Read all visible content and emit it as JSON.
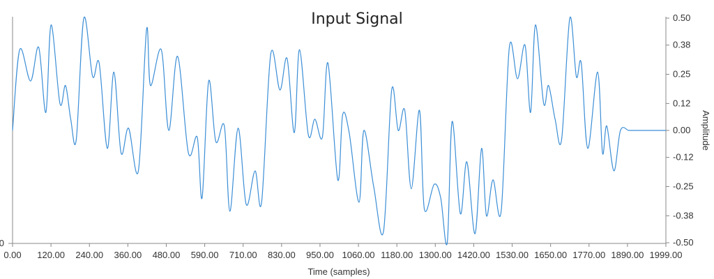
{
  "chart_data": {
    "type": "line",
    "title": "Input Signal",
    "xlabel": "Time (samples)",
    "ylabel": "Amplitude",
    "xlim": [
      0,
      1999
    ],
    "ylim": [
      -0.5,
      0.5
    ],
    "x_ticks": [
      "0.00",
      "120.00",
      "240.00",
      "360.00",
      "480.00",
      "590.00",
      "710.00",
      "830.00",
      "950.00",
      "1060.00",
      "1180.00",
      "1300.00",
      "1420.00",
      "1530.00",
      "1650.00",
      "1770.00",
      "1890.00",
      "1999.00"
    ],
    "y_ticks": [
      "0.50",
      "0.38",
      "0.25",
      "0.12",
      "0.00",
      "-0.12",
      "-0.25",
      "-0.38",
      "-0.50"
    ],
    "left_axis_tick": "0",
    "y_axis_side": "right",
    "grid": false,
    "legend": "none",
    "series": [
      {
        "color": "#3b8ed6",
        "x": [
          0,
          22,
          55,
          80,
          102,
          118,
          145,
          162,
          178,
          195,
          218,
          245,
          265,
          290,
          310,
          332,
          355,
          385,
          410,
          422,
          455,
          478,
          505,
          538,
          565,
          580,
          600,
          622,
          648,
          665,
          690,
          715,
          742,
          762,
          790,
          818,
          840,
          862,
          878,
          905,
          925,
          948,
          965,
          995,
          1010,
          1030,
          1060,
          1075,
          1105,
          1135,
          1160,
          1180,
          1200,
          1220,
          1245,
          1260,
          1290,
          1310,
          1330,
          1345,
          1370,
          1390,
          1415,
          1435,
          1450,
          1470,
          1495,
          1520,
          1545,
          1568,
          1585,
          1600,
          1625,
          1640,
          1660,
          1680,
          1705,
          1725,
          1740,
          1760,
          1790,
          1805,
          1818,
          1840,
          1860,
          1885,
          1900,
          1920,
          1950,
          1970,
          1999
        ],
        "y": [
          0.0,
          0.36,
          0.22,
          0.37,
          0.08,
          0.47,
          0.12,
          0.2,
          0.05,
          -0.04,
          0.5,
          0.24,
          0.3,
          -0.08,
          0.26,
          -0.1,
          0.01,
          -0.18,
          0.45,
          0.2,
          0.36,
          0.0,
          0.33,
          -0.1,
          -0.03,
          -0.3,
          0.22,
          -0.05,
          0.02,
          -0.36,
          0.01,
          -0.33,
          -0.18,
          -0.32,
          0.34,
          0.18,
          0.32,
          -0.01,
          0.36,
          -0.02,
          0.05,
          -0.03,
          0.3,
          -0.22,
          0.07,
          -0.01,
          -0.32,
          0.0,
          -0.25,
          -0.45,
          0.18,
          0.0,
          0.09,
          -0.26,
          0.09,
          -0.35,
          -0.24,
          -0.3,
          -0.5,
          0.04,
          -0.37,
          -0.14,
          -0.46,
          -0.08,
          -0.38,
          -0.22,
          -0.36,
          0.37,
          0.23,
          0.38,
          0.08,
          0.47,
          0.12,
          0.2,
          0.05,
          -0.04,
          0.5,
          0.24,
          0.3,
          -0.08,
          0.26,
          -0.1,
          0.02,
          -0.18,
          0.0,
          0.0,
          0.0,
          0.0,
          0.0,
          0.0,
          0.0
        ]
      }
    ]
  }
}
